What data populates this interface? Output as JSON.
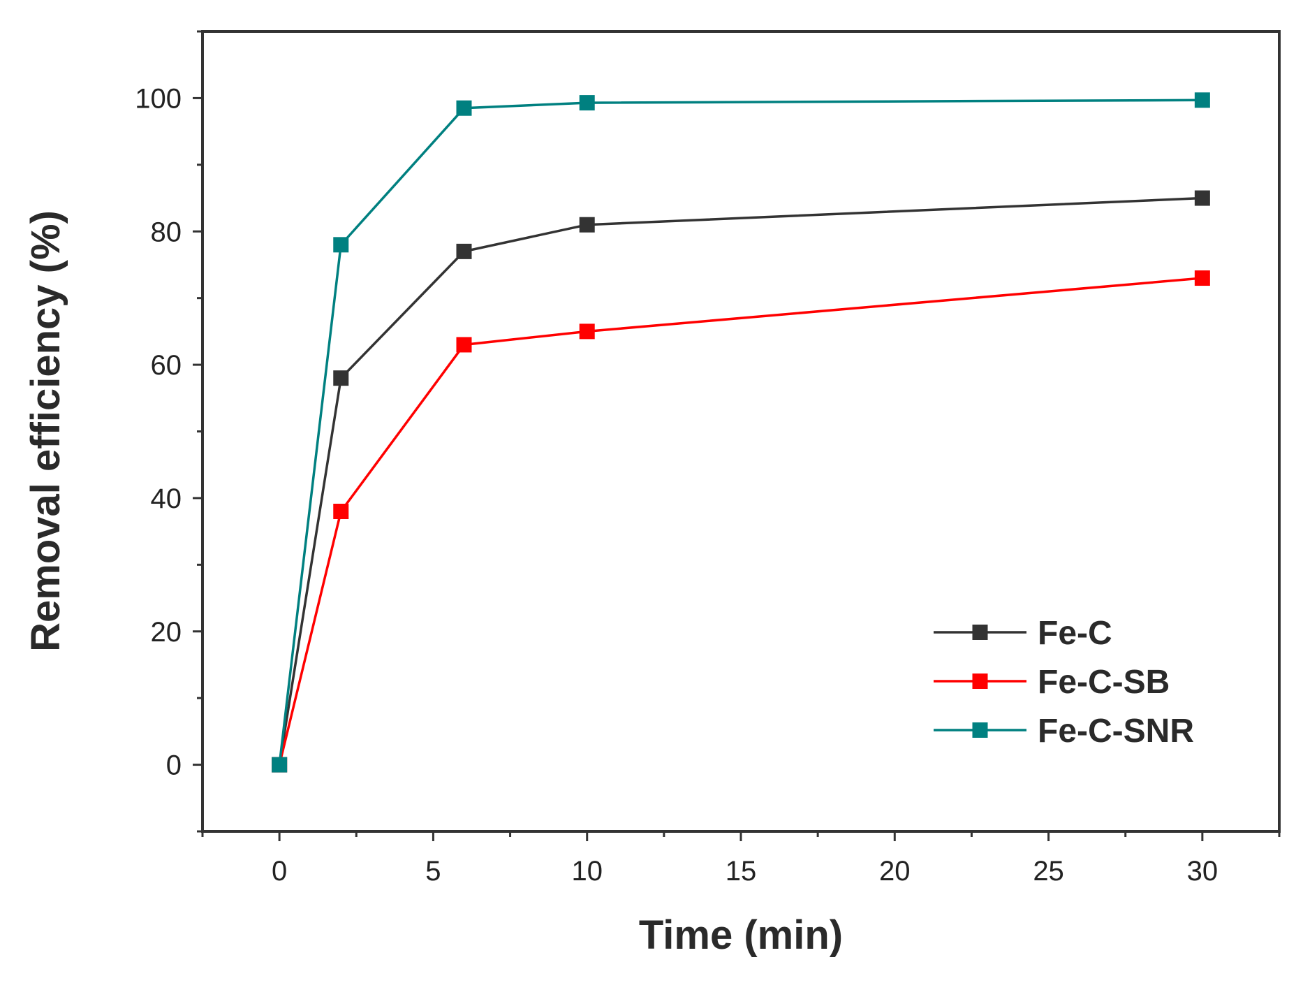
{
  "chart_data": {
    "type": "line",
    "title": "",
    "xlabel": "Time (min)",
    "ylabel": "Removal efficiency (%)",
    "xlim": [
      -2.5,
      32.5
    ],
    "ylim": [
      -10,
      110
    ],
    "xticks": [
      0,
      5,
      10,
      15,
      20,
      25,
      30
    ],
    "xtick_labels": [
      "0",
      "5",
      "10",
      "15",
      "20",
      "25",
      "30"
    ],
    "yticks": [
      0,
      20,
      40,
      60,
      80,
      100
    ],
    "ytick_labels": [
      "0",
      "20",
      "40",
      "60",
      "80",
      "100"
    ],
    "x": [
      0,
      2,
      6,
      10,
      30
    ],
    "series": [
      {
        "name": "Fe-C",
        "color": "#333333",
        "marker": "square",
        "values": [
          0,
          58,
          77,
          81,
          85
        ]
      },
      {
        "name": "Fe-C-SB",
        "color": "#ff0000",
        "marker": "square",
        "values": [
          0,
          38,
          63,
          65,
          73
        ]
      },
      {
        "name": "Fe-C-SNR",
        "color": "#008080",
        "marker": "square",
        "values": [
          0,
          78,
          98.5,
          99.3,
          99.7
        ]
      }
    ],
    "legend": {
      "position": "bottom-right",
      "entries": [
        "Fe-C",
        "Fe-C-SB",
        "Fe-C-SNR"
      ]
    },
    "grid": false
  }
}
